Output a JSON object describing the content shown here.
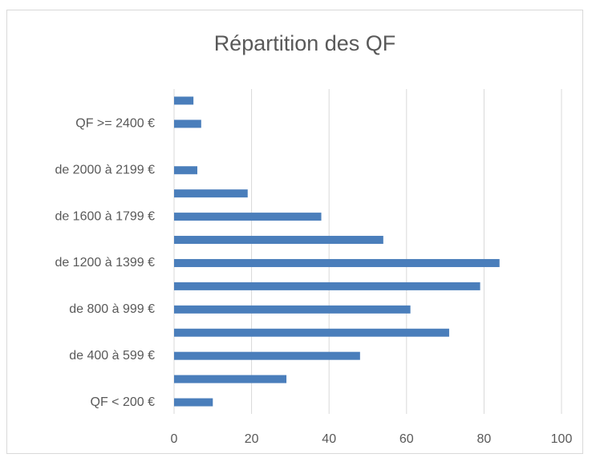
{
  "chart_data": {
    "type": "bar",
    "orientation": "horizontal",
    "title": "Répartition des QF",
    "categories": [
      "QF < 200 €",
      null,
      "de 400 à 599 €",
      null,
      "de 800 à 999 €",
      null,
      "de 1200 à 1399 €",
      null,
      "de 1600 à 1799 €",
      null,
      "de 2000 à 2199 €",
      null,
      "QF >= 2400 €",
      null
    ],
    "values": [
      10,
      29,
      48,
      71,
      61,
      79,
      84,
      54,
      38,
      19,
      6,
      0,
      7,
      5
    ],
    "color": "#4a7ebb",
    "xlim": [
      0,
      100
    ],
    "xticks": [
      0,
      20,
      40,
      60,
      80,
      100
    ],
    "grid": true
  }
}
